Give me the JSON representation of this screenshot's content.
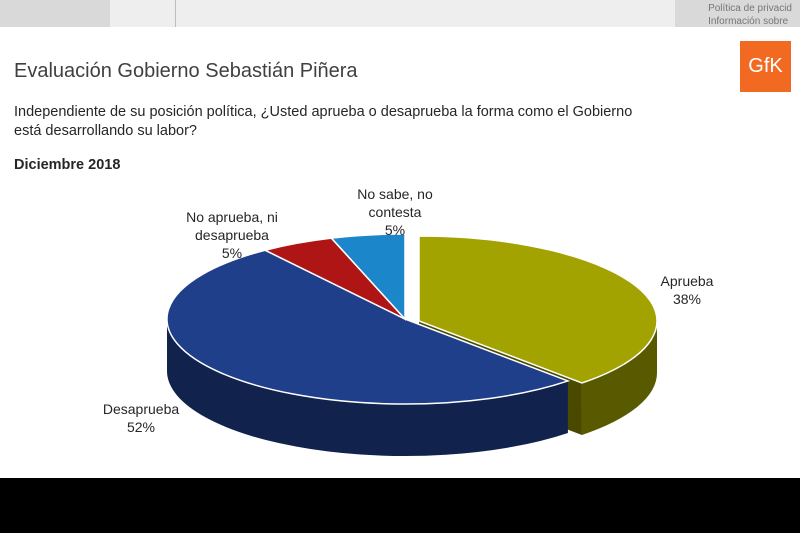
{
  "background": {
    "faded_text": [
      "Política de privacid",
      "Información sobre"
    ]
  },
  "slide": {
    "title": "Evaluación Gobierno Sebastián Piñera",
    "question_line1": "Independiente de su posición política, ¿Usted aprueba o desaprueba la forma como el Gobierno",
    "question_line2": "está desarrollando su labor?",
    "period": "Diciembre 2018",
    "logo_text": "GfK"
  },
  "chart_data": {
    "type": "pie",
    "title": "",
    "categories": [
      "Aprueba",
      "Desaprueba",
      "No aprueba, ni desaprueba",
      "No sabe, no contesta"
    ],
    "values": [
      38,
      52,
      5,
      5
    ],
    "labels": [
      {
        "lines": [
          "Aprueba"
        ],
        "pct": "38%"
      },
      {
        "lines": [
          "Desaprueba"
        ],
        "pct": "52%"
      },
      {
        "lines": [
          "No aprueba, ni",
          "desaprueba"
        ],
        "pct": "5%"
      },
      {
        "lines": [
          "No sabe, no",
          "contesta"
        ],
        "pct": "5%"
      }
    ],
    "colors": [
      "#a2a300",
      "#1f3f8a",
      "#b01515",
      "#1b86c9"
    ],
    "exploded": "Aprueba"
  }
}
